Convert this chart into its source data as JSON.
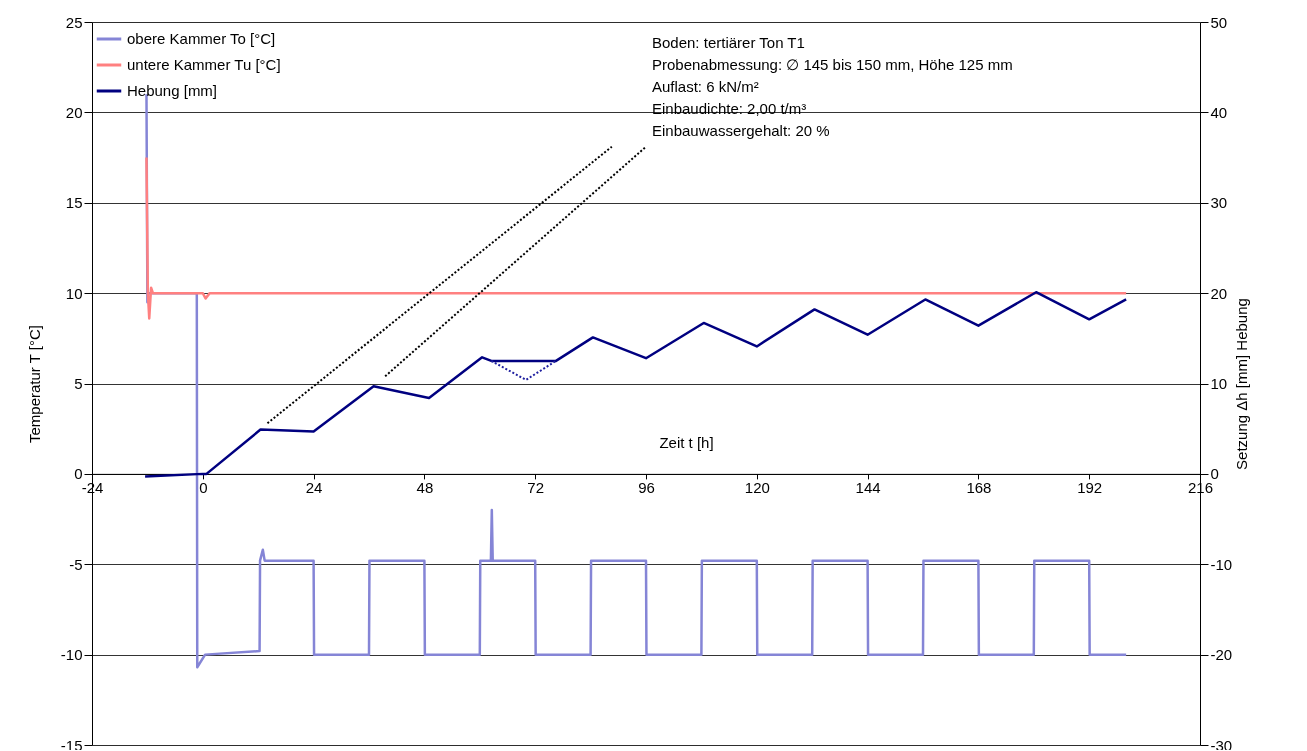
{
  "chart_data": {
    "type": "line",
    "xlabel": "Zeit t [h]",
    "ylabel": "Temperatur T [°C]",
    "y2label": "Setzung   Δh [mm]   Hebung",
    "xlim": [
      -24,
      216
    ],
    "xticks": [
      -24,
      0,
      24,
      48,
      72,
      96,
      120,
      144,
      168,
      192,
      216
    ],
    "ylim": [
      -15,
      25
    ],
    "yticks": [
      -15,
      -10,
      -5,
      0,
      5,
      10,
      15,
      20,
      25
    ],
    "y2lim": [
      -30,
      50
    ],
    "y2ticks": [
      -30,
      -20,
      -10,
      0,
      10,
      20,
      30,
      40,
      50
    ],
    "grid": "y",
    "legend": "top left",
    "marker": "none",
    "annotations": [
      "Boden: tertiärer Ton T1",
      "Probenabmessung: ∅ 145 bis 150 mm, Höhe 125 mm",
      "Auflast: 6 kN/m²",
      "Einbaudichte: 2,00 t/m³",
      "Einbauwassergehalt: 20 %"
    ],
    "series": [
      {
        "name": "obere Kammer To [°C]",
        "color": "#8585d6",
        "line_style": "solid",
        "x": [
          -12.2,
          -12,
          -11.8,
          -1.3,
          -1.2,
          0.5,
          12.3,
          12.4,
          13,
          13.4,
          24,
          24.1,
          36,
          36.1,
          48,
          48.1,
          60,
          60.1,
          62.4,
          62.6,
          62.8,
          72,
          72.1,
          84,
          84.1,
          96,
          96.1,
          108,
          108.1,
          120,
          120.1,
          132,
          132.1,
          144,
          144.1,
          156,
          156.1,
          168,
          168.1,
          180,
          180.1,
          192,
          192.1,
          200
        ],
        "values": [
          21,
          9.5,
          10,
          10,
          -10.7,
          -10,
          -9.8,
          -4.8,
          -4.2,
          -4.8,
          -4.8,
          -10,
          -10,
          -4.8,
          -4.8,
          -10,
          -10,
          -4.8,
          -4.8,
          -2,
          -4.8,
          -4.8,
          -10,
          -10,
          -4.8,
          -4.8,
          -10,
          -10,
          -4.8,
          -4.8,
          -10,
          -10,
          -4.8,
          -4.8,
          -10,
          -10,
          -4.8,
          -4.8,
          -10,
          -10,
          -4.8,
          -4.8,
          -10,
          -10
        ]
      },
      {
        "name": "untere Kammer Tu [°C]",
        "color": "#ff8080",
        "line_style": "solid",
        "x": [
          -12.2,
          -11.9,
          -11.6,
          -11.2,
          -10.8,
          0,
          0.6,
          1.5,
          200
        ],
        "values": [
          17.5,
          10,
          8.6,
          10.3,
          10,
          10,
          9.7,
          10,
          10
        ]
      },
      {
        "name": "Hebung [mm]",
        "color": "#000080",
        "line_style": "solid",
        "axis": "y2",
        "x": [
          -12.5,
          0,
          0.8,
          12.5,
          24,
          37,
          49,
          60.5,
          62.5,
          76.5,
          84.5,
          96,
          108.5,
          120,
          132.5,
          144,
          156.5,
          168,
          180.5,
          192,
          200
        ],
        "values": [
          -0.3,
          0,
          0,
          4.9,
          4.7,
          9.7,
          8.4,
          12.9,
          12.5,
          12.5,
          15.1,
          12.8,
          16.7,
          14.1,
          18.2,
          15.4,
          19.3,
          16.4,
          20.1,
          17.1,
          19.3
        ]
      },
      {
        "color": "#2020a0",
        "line_style": "dotted",
        "axis": "y2",
        "x": [
          62.5,
          70,
          76.5
        ],
        "values": [
          12.5,
          10.4,
          12.5
        ]
      },
      {
        "color": "#000000",
        "line_style": "dotted",
        "x": [
          14,
          88.6
        ],
        "values": [
          2.8,
          18.1
        ]
      },
      {
        "color": "#000000",
        "line_style": "dotted",
        "x": [
          39.5,
          96
        ],
        "values": [
          5.4,
          18.1
        ]
      }
    ]
  }
}
